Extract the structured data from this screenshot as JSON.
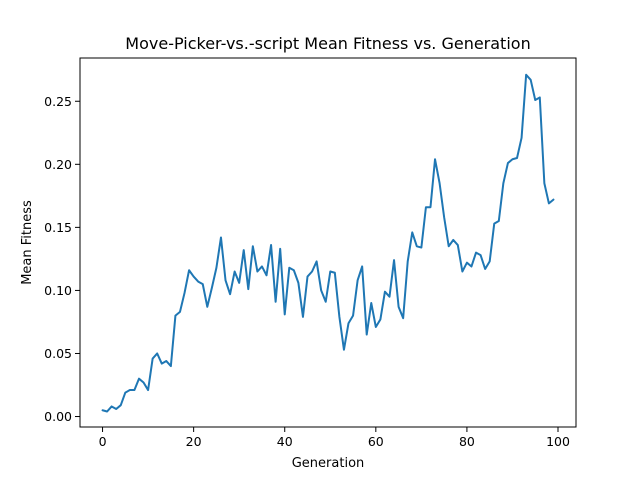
{
  "chart_data": {
    "type": "line",
    "title": "Move-Picker-vs.-script Mean Fitness vs. Generation",
    "xlabel": "Generation",
    "ylabel": "Mean Fitness",
    "xlim": [
      -4.95,
      103.95
    ],
    "ylim": [
      -0.0083,
      0.2843
    ],
    "xticks": [
      0,
      20,
      40,
      60,
      80,
      100
    ],
    "xtick_labels": [
      "0",
      "20",
      "40",
      "60",
      "80",
      "100"
    ],
    "yticks": [
      0.0,
      0.05,
      0.1,
      0.15,
      0.2,
      0.25
    ],
    "ytick_labels": [
      "0.00",
      "0.05",
      "0.10",
      "0.15",
      "0.20",
      "0.25"
    ],
    "grid": false,
    "legend": "none",
    "color": "#1f77b4",
    "series": [
      {
        "x": [
          0,
          1,
          2,
          3,
          4,
          5,
          6,
          7,
          8,
          9,
          10,
          11,
          12,
          13,
          14,
          15,
          16,
          17,
          18,
          19,
          20,
          21,
          22,
          23,
          24,
          25,
          26,
          27,
          28,
          29,
          30,
          31,
          32,
          33,
          34,
          35,
          36,
          37,
          38,
          39,
          40,
          41,
          42,
          43,
          44,
          45,
          46,
          47,
          48,
          49,
          50,
          51,
          52,
          53,
          54,
          55,
          56,
          57,
          58,
          59,
          60,
          61,
          62,
          63,
          64,
          65,
          66,
          67,
          68,
          69,
          70,
          71,
          72,
          73,
          74,
          75,
          76,
          77,
          78,
          79,
          80,
          81,
          82,
          83,
          84,
          85,
          86,
          87,
          88,
          89,
          90,
          91,
          92,
          93,
          94,
          95,
          96,
          97,
          98,
          99
        ],
        "values": [
          0.005,
          0.004,
          0.008,
          0.006,
          0.009,
          0.019,
          0.021,
          0.021,
          0.03,
          0.027,
          0.021,
          0.046,
          0.05,
          0.042,
          0.044,
          0.04,
          0.08,
          0.083,
          0.098,
          0.116,
          0.111,
          0.107,
          0.105,
          0.087,
          0.102,
          0.118,
          0.142,
          0.108,
          0.097,
          0.115,
          0.106,
          0.132,
          0.101,
          0.135,
          0.115,
          0.119,
          0.112,
          0.136,
          0.091,
          0.133,
          0.081,
          0.118,
          0.116,
          0.106,
          0.079,
          0.111,
          0.115,
          0.123,
          0.1,
          0.091,
          0.115,
          0.114,
          0.079,
          0.053,
          0.074,
          0.08,
          0.108,
          0.119,
          0.065,
          0.09,
          0.071,
          0.077,
          0.099,
          0.095,
          0.124,
          0.087,
          0.078,
          0.123,
          0.146,
          0.135,
          0.134,
          0.166,
          0.166,
          0.204,
          0.185,
          0.158,
          0.135,
          0.14,
          0.136,
          0.115,
          0.122,
          0.119,
          0.13,
          0.128,
          0.117,
          0.123,
          0.153,
          0.155,
          0.185,
          0.201,
          0.204,
          0.205,
          0.221,
          0.271,
          0.267,
          0.251,
          0.253,
          0.185,
          0.169,
          0.172
        ]
      }
    ]
  }
}
